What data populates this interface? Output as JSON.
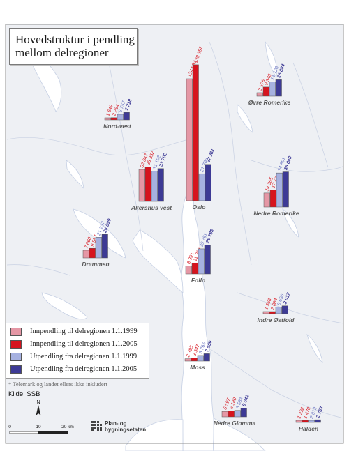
{
  "title_line1": "Hovedstruktur i pendling",
  "title_line2": "mellom delregioner",
  "legend": [
    {
      "label": "Innpendling til delregionen 1.1.1999",
      "color": "#e597a5"
    },
    {
      "label": "Innpendling til delregionen 1.1.2005",
      "color": "#d6141e"
    },
    {
      "label": "Utpendling fra delregionen 1.1.1999",
      "color": "#a6b1e0"
    },
    {
      "label": "Utpendling fra delregionen 1.1.2005",
      "color": "#3d3a95"
    }
  ],
  "value_label_colors": [
    "#d6141e",
    "#d6141e",
    "#6a74c0",
    "#3d3a95"
  ],
  "footnote": "* Telemark og landet ellers ikke inkludert",
  "source": "Kilde: SSB",
  "north_label": "N",
  "scale": {
    "labels": [
      "0",
      "10",
      "20 km"
    ]
  },
  "logo": {
    "line1": "Plan- og",
    "line2": "bygningsetaten"
  },
  "chart_data": {
    "type": "bar",
    "series_names": [
      "Innpendling til delregionen 1.1.1999",
      "Innpendling til delregionen 1.1.2005",
      "Utpendling fra delregionen 1.1.1999",
      "Utpendling fra delregionen 1.1.2005"
    ],
    "regions": [
      {
        "name": "Nord-vest",
        "values": [
          1649,
          2264,
          5757,
          7718
        ],
        "labels": [
          "1 649",
          "2 264",
          "5 757",
          "7 718"
        ]
      },
      {
        "name": "Oslo",
        "values": [
          124982,
          139357,
          27706,
          37281
        ],
        "labels": [
          "124 982",
          "139 357",
          "27 706",
          "37 281"
        ]
      },
      {
        "name": "Øvre Romerike",
        "values": [
          3576,
          9346,
          14726,
          16884
        ],
        "labels": [
          "3 576",
          "9 346",
          "14 726",
          "16 884"
        ]
      },
      {
        "name": "Akershus vest",
        "values": [
          32847,
          35352,
          31192,
          33702
        ],
        "labels": [
          "32 847",
          "35 352",
          "31 192",
          "33 702"
        ]
      },
      {
        "name": "Nedre Romerike",
        "values": [
          14365,
          17539,
          34891,
          36040
        ],
        "labels": [
          "14 365",
          "17 539",
          "34 891",
          "36 040"
        ]
      },
      {
        "name": "Drammen",
        "values": [
          7860,
          9857,
          21237,
          24099
        ],
        "labels": [
          "7 860",
          "9 857",
          "21 237",
          "24 099"
        ]
      },
      {
        "name": "Follo",
        "values": [
          8391,
          11266,
          25751,
          29785
        ],
        "labels": [
          "8 391",
          "11 266",
          "25 751",
          "29 785"
        ]
      },
      {
        "name": "Indre Østfold",
        "values": [
          1566,
          2084,
          6656,
          8017
        ],
        "labels": [
          "1 566",
          "2 084",
          "6 656",
          "8 017"
        ]
      },
      {
        "name": "Moss",
        "values": [
          2395,
          3347,
          5765,
          7556
        ],
        "labels": [
          "2 395",
          "3 347",
          "5 765",
          "7 556"
        ]
      },
      {
        "name": "Nedre Glomma",
        "values": [
          5597,
          6180,
          6583,
          9042
        ],
        "labels": [
          "5 597",
          "6 180",
          "6 583",
          "9 042"
        ]
      },
      {
        "name": "Halden",
        "values": [
          1232,
          1470,
          2013,
          2753
        ],
        "labels": [
          "1 232",
          "1 470",
          "2 013",
          "2 753"
        ]
      }
    ]
  }
}
